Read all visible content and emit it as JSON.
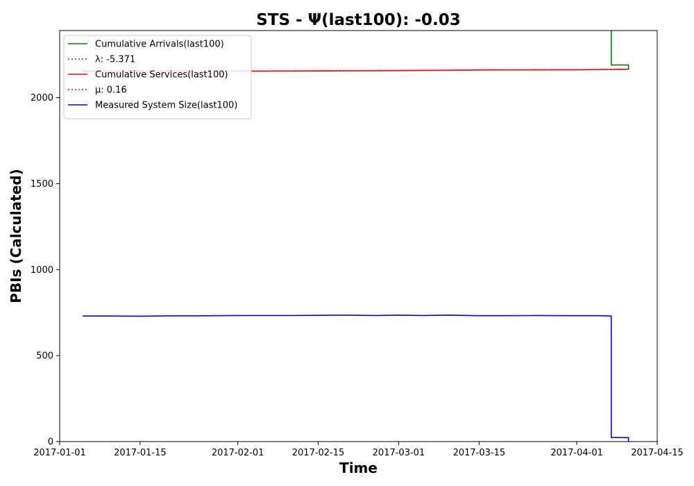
{
  "chart_data": {
    "type": "line",
    "title": "STS -  Ψ(last100): -0.03",
    "xlabel": "Time",
    "ylabel": "PBIs (Calculated)",
    "x_type": "date",
    "xlim": [
      "2017-01-01",
      "2017-04-15"
    ],
    "ylim": [
      0,
      2390
    ],
    "x_ticks": [
      "2017-01-01",
      "2017-01-15",
      "2017-02-01",
      "2017-02-15",
      "2017-03-01",
      "2017-03-15",
      "2017-04-01",
      "2017-04-15"
    ],
    "y_ticks": [
      0,
      500,
      1000,
      1500,
      2000
    ],
    "grid": false,
    "legend_position": "upper-left",
    "series": [
      {
        "name": "Cumulative Arrivals(last100)",
        "color": "#008000",
        "style": "solid",
        "points": [
          [
            "2017-04-07",
            2390
          ],
          [
            "2017-04-07",
            2190
          ],
          [
            "2017-04-10",
            2190
          ],
          [
            "2017-04-10",
            2165
          ]
        ]
      },
      {
        "name": "λ: -5.371",
        "color": "#008000",
        "style": "dotted",
        "points": []
      },
      {
        "name": "Cumulative Services(last100)",
        "color": "#ff0000",
        "style": "solid",
        "points": [
          [
            "2017-01-05",
            2155
          ],
          [
            "2017-01-20",
            2155
          ],
          [
            "2017-02-01",
            2154
          ],
          [
            "2017-02-15",
            2155
          ],
          [
            "2017-03-01",
            2157
          ],
          [
            "2017-03-10",
            2159
          ],
          [
            "2017-03-15",
            2161
          ],
          [
            "2017-04-01",
            2162
          ],
          [
            "2017-04-10",
            2165
          ]
        ]
      },
      {
        "name": "μ: 0.16",
        "color": "#ff0000",
        "style": "dotted",
        "points": [
          [
            "2017-01-05",
            2151
          ],
          [
            "2017-02-01",
            2154
          ],
          [
            "2017-03-01",
            2158
          ],
          [
            "2017-04-10",
            2164
          ]
        ]
      },
      {
        "name": "Measured System Size(last100)",
        "color": "#0000ff",
        "style": "solid",
        "points": [
          [
            "2017-01-05",
            730
          ],
          [
            "2017-01-10",
            730
          ],
          [
            "2017-01-15",
            729
          ],
          [
            "2017-01-20",
            731
          ],
          [
            "2017-01-25",
            731
          ],
          [
            "2017-01-31",
            733
          ],
          [
            "2017-02-05",
            733
          ],
          [
            "2017-02-10",
            733
          ],
          [
            "2017-02-20",
            735
          ],
          [
            "2017-02-25",
            733
          ],
          [
            "2017-03-01",
            735
          ],
          [
            "2017-03-05",
            733
          ],
          [
            "2017-03-10",
            735
          ],
          [
            "2017-03-15",
            732
          ],
          [
            "2017-03-20",
            732
          ],
          [
            "2017-03-25",
            733
          ],
          [
            "2017-03-30",
            732
          ],
          [
            "2017-04-05",
            732
          ],
          [
            "2017-04-07",
            730
          ],
          [
            "2017-04-07",
            24
          ],
          [
            "2017-04-10",
            23
          ],
          [
            "2017-04-10",
            0
          ]
        ]
      }
    ]
  }
}
